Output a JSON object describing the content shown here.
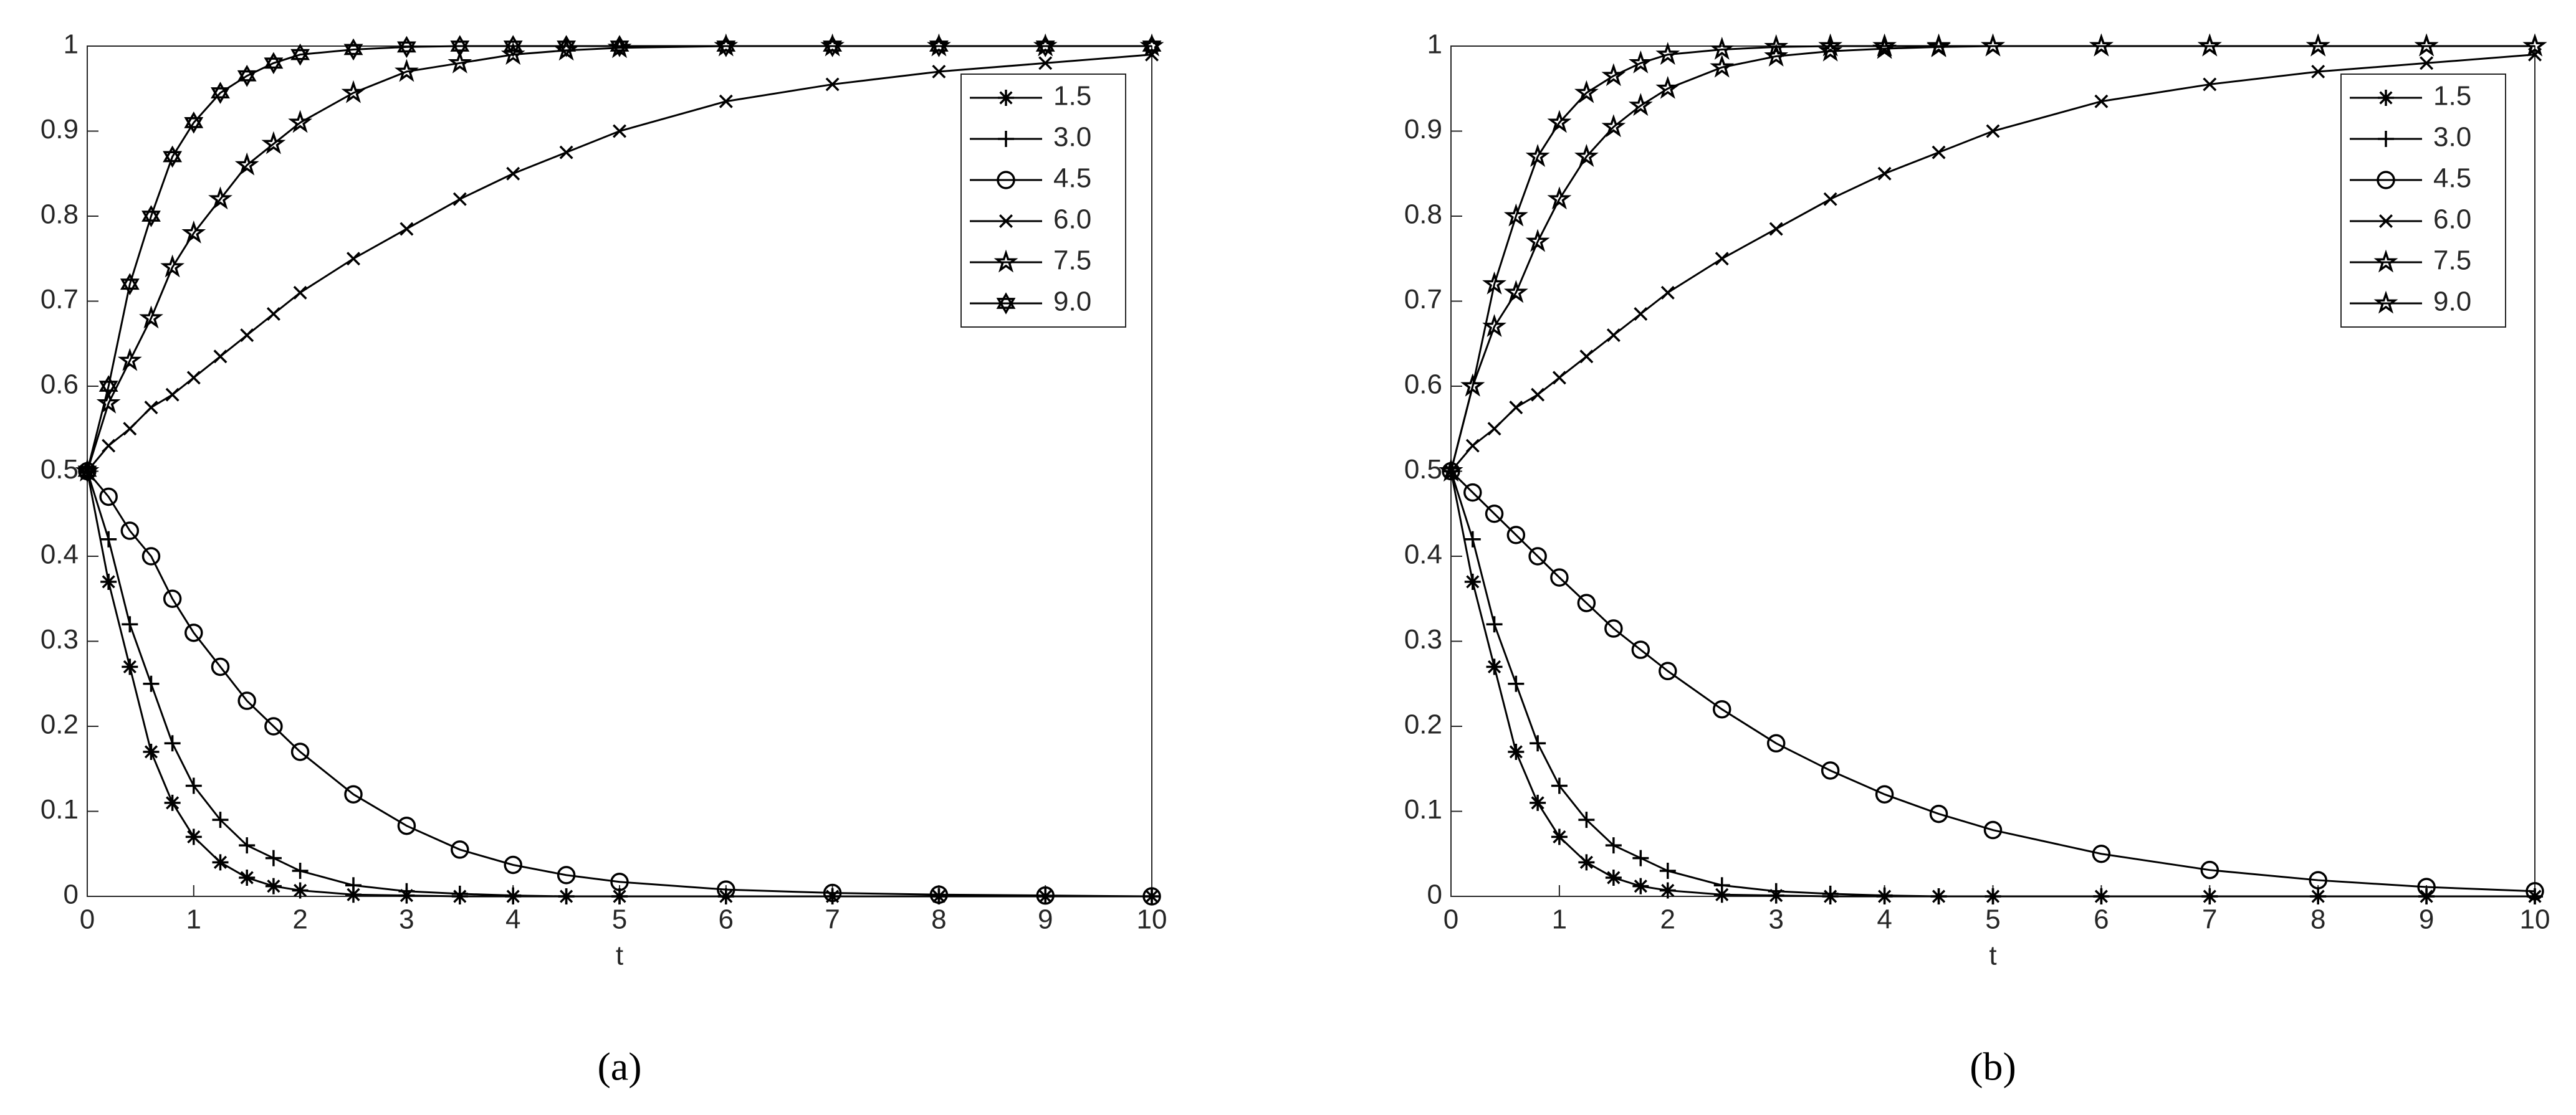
{
  "chart_data": [
    {
      "type": "line",
      "caption": "(a)",
      "xlabel": "t",
      "legend": "upper right",
      "grid": false,
      "x": [
        0,
        0.2,
        0.4,
        0.6,
        0.8,
        1,
        1.25,
        1.5,
        1.75,
        2,
        2.5,
        3,
        3.5,
        4,
        4.5,
        5,
        6,
        7,
        8,
        9,
        10
      ],
      "xlim": [
        0,
        10
      ],
      "xticks": [
        0,
        1,
        2,
        3,
        4,
        5,
        6,
        7,
        8,
        9,
        10
      ],
      "ylim": [
        0,
        1
      ],
      "yticks": [
        0,
        0.1,
        0.2,
        0.3,
        0.4,
        0.5,
        0.6,
        0.7,
        0.8,
        0.9,
        1
      ],
      "series": [
        {
          "name": "1.5",
          "color": "#000000",
          "marker": "asterisk",
          "values": [
            0.5,
            0.37,
            0.27,
            0.17,
            0.11,
            0.07,
            0.04,
            0.022,
            0.012,
            0.007,
            0.002,
            0.001,
            0,
            0,
            0,
            0,
            0,
            0,
            0,
            0,
            0
          ]
        },
        {
          "name": "3.0",
          "color": "#000000",
          "marker": "plus",
          "values": [
            0.5,
            0.42,
            0.32,
            0.25,
            0.18,
            0.13,
            0.09,
            0.06,
            0.045,
            0.03,
            0.013,
            0.006,
            0.003,
            0.001,
            0,
            0,
            0,
            0,
            0,
            0,
            0
          ]
        },
        {
          "name": "4.5",
          "color": "#000000",
          "marker": "circle",
          "values": [
            0.5,
            0.47,
            0.43,
            0.4,
            0.35,
            0.31,
            0.27,
            0.23,
            0.2,
            0.17,
            0.12,
            0.083,
            0.055,
            0.037,
            0.025,
            0.017,
            0.008,
            0.004,
            0.002,
            0.001,
            0
          ]
        },
        {
          "name": "6.0",
          "color": "#000000",
          "marker": "x",
          "values": [
            0.5,
            0.53,
            0.55,
            0.575,
            0.59,
            0.61,
            0.635,
            0.66,
            0.685,
            0.71,
            0.75,
            0.785,
            0.82,
            0.85,
            0.875,
            0.9,
            0.935,
            0.955,
            0.97,
            0.98,
            0.99
          ]
        },
        {
          "name": "7.5",
          "color": "#000000",
          "marker": "star",
          "values": [
            0.5,
            0.58,
            0.63,
            0.68,
            0.74,
            0.78,
            0.82,
            0.86,
            0.885,
            0.91,
            0.945,
            0.97,
            0.98,
            0.99,
            0.995,
            0.998,
            1,
            1,
            1,
            1,
            1
          ]
        },
        {
          "name": "9.0",
          "color": "#000000",
          "marker": "hexagram",
          "values": [
            0.5,
            0.6,
            0.72,
            0.8,
            0.87,
            0.91,
            0.945,
            0.965,
            0.98,
            0.99,
            0.996,
            0.999,
            1,
            1,
            1,
            1,
            1,
            1,
            1,
            1,
            1
          ]
        }
      ]
    },
    {
      "type": "line",
      "caption": "(b)",
      "xlabel": "t",
      "legend": "upper right",
      "grid": false,
      "x": [
        0,
        0.2,
        0.4,
        0.6,
        0.8,
        1,
        1.25,
        1.5,
        1.75,
        2,
        2.5,
        3,
        3.5,
        4,
        4.5,
        5,
        6,
        7,
        8,
        9,
        10
      ],
      "xlim": [
        0,
        10
      ],
      "xticks": [
        0,
        1,
        2,
        3,
        4,
        5,
        6,
        7,
        8,
        9,
        10
      ],
      "ylim": [
        0,
        1
      ],
      "yticks": [
        0,
        0.1,
        0.2,
        0.3,
        0.4,
        0.5,
        0.6,
        0.7,
        0.8,
        0.9,
        1
      ],
      "series": [
        {
          "name": "1.5",
          "color": "#000000",
          "marker": "asterisk",
          "values": [
            0.5,
            0.37,
            0.27,
            0.17,
            0.11,
            0.07,
            0.04,
            0.022,
            0.012,
            0.007,
            0.002,
            0.001,
            0,
            0,
            0,
            0,
            0,
            0,
            0,
            0,
            0
          ]
        },
        {
          "name": "3.0",
          "color": "#000000",
          "marker": "plus",
          "values": [
            0.5,
            0.42,
            0.32,
            0.25,
            0.18,
            0.13,
            0.09,
            0.06,
            0.045,
            0.03,
            0.013,
            0.006,
            0.003,
            0.001,
            0,
            0,
            0,
            0,
            0,
            0,
            0
          ]
        },
        {
          "name": "4.5",
          "color": "#000000",
          "marker": "circle",
          "values": [
            0.5,
            0.475,
            0.45,
            0.425,
            0.4,
            0.375,
            0.345,
            0.315,
            0.29,
            0.265,
            0.22,
            0.18,
            0.148,
            0.12,
            0.097,
            0.078,
            0.05,
            0.031,
            0.019,
            0.011,
            0.006
          ]
        },
        {
          "name": "6.0",
          "color": "#000000",
          "marker": "x",
          "values": [
            0.5,
            0.53,
            0.55,
            0.575,
            0.59,
            0.61,
            0.635,
            0.66,
            0.685,
            0.71,
            0.75,
            0.785,
            0.82,
            0.85,
            0.875,
            0.9,
            0.935,
            0.955,
            0.97,
            0.98,
            0.99
          ]
        },
        {
          "name": "7.5",
          "color": "#000000",
          "marker": "star",
          "values": [
            0.5,
            0.6,
            0.67,
            0.71,
            0.77,
            0.82,
            0.87,
            0.905,
            0.93,
            0.95,
            0.975,
            0.988,
            0.994,
            0.997,
            0.999,
            1,
            1,
            1,
            1,
            1,
            1
          ]
        },
        {
          "name": "9.0",
          "color": "#000000",
          "marker": "star",
          "values": [
            0.5,
            0.6,
            0.72,
            0.8,
            0.87,
            0.91,
            0.945,
            0.965,
            0.98,
            0.99,
            0.996,
            0.999,
            1,
            1,
            1,
            1,
            1,
            1,
            1,
            1,
            1
          ]
        }
      ]
    }
  ]
}
